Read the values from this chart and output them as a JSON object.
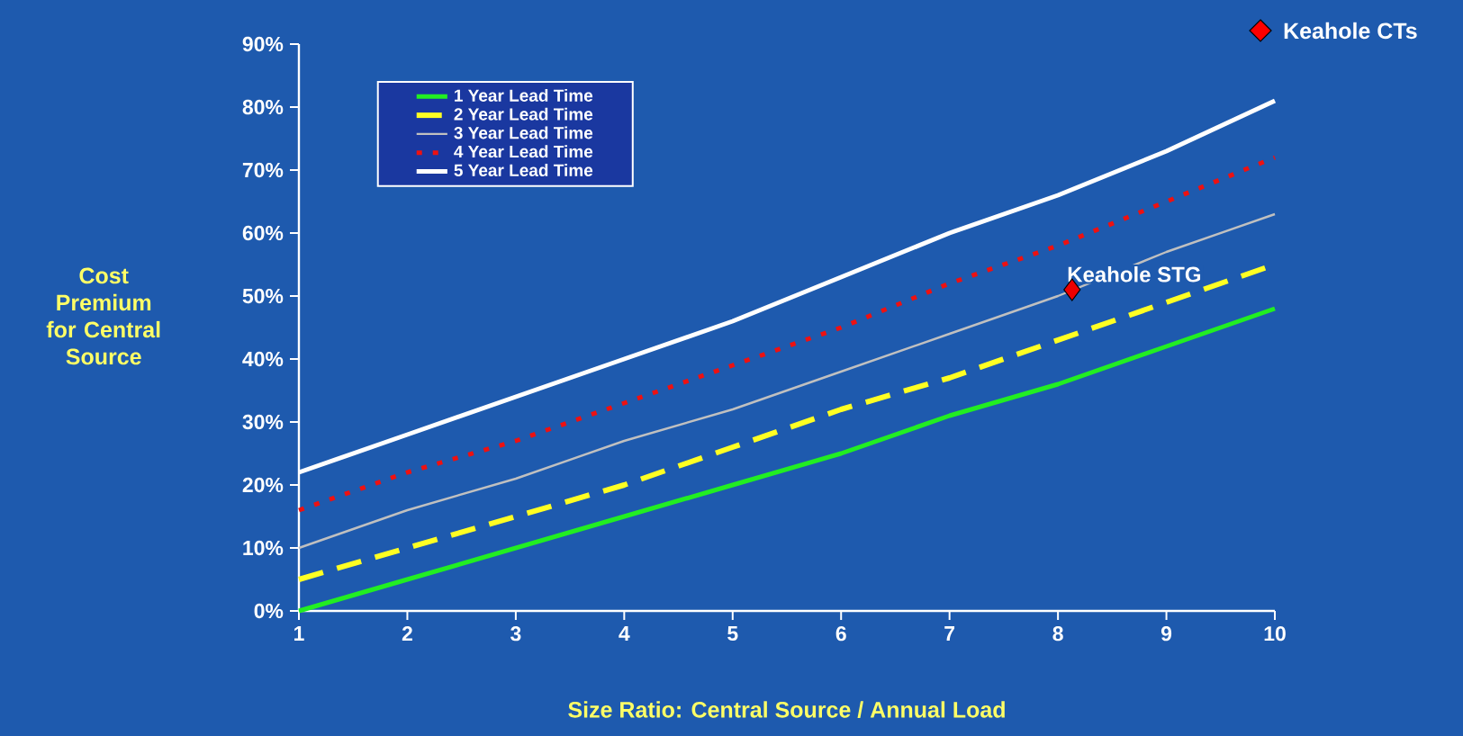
{
  "chart_data": {
    "type": "line",
    "xlabel": "Size Ratio: Central Source / Annual Load",
    "ylabel": "Cost Premium for Central Source",
    "x": [
      1,
      2,
      3,
      4,
      5,
      6,
      7,
      8,
      9,
      10
    ],
    "series": [
      {
        "name": "1 Year Lead Time",
        "color": "#22ee22",
        "line_style": "solid",
        "values": [
          0,
          5,
          10,
          15,
          20,
          25,
          31,
          36,
          42,
          48
        ]
      },
      {
        "name": "2 Year Lead Time",
        "color": "#ffff22",
        "line_style": "dashed",
        "values": [
          5,
          10,
          15,
          20,
          26,
          32,
          37,
          43,
          49,
          55
        ]
      },
      {
        "name": "3 Year Lead Time",
        "color": "#c0c0c0",
        "line_style": "solid",
        "values": [
          10,
          16,
          21,
          27,
          32,
          38,
          44,
          50,
          57,
          63
        ]
      },
      {
        "name": "4 Year Lead Time",
        "color": "#ee1111",
        "line_style": "dotted",
        "values": [
          16,
          22,
          27,
          33,
          39,
          45,
          52,
          58,
          65,
          72
        ]
      },
      {
        "name": "5 Year Lead Time",
        "color": "#ffffff",
        "line_style": "solid",
        "values": [
          22,
          28,
          34,
          40,
          46,
          53,
          60,
          66,
          73,
          81
        ]
      },
      {
        "name": "Keahole STG",
        "type": "scatter",
        "marker": "diamond",
        "color": "#ee0000",
        "x": [
          8.13
        ],
        "values": [
          51
        ]
      }
    ],
    "annotations": [
      "Keahole CTs"
    ],
    "xlim": [
      1,
      10
    ],
    "xticks": [
      1,
      2,
      3,
      4,
      5,
      6,
      7,
      8,
      9,
      10
    ],
    "ylim": [
      0,
      90
    ],
    "yticks": [
      {
        "value": 0,
        "label": "0%"
      },
      {
        "value": 10,
        "label": "10%"
      },
      {
        "value": 20,
        "label": "20%"
      },
      {
        "value": 30,
        "label": "30%"
      },
      {
        "value": 40,
        "label": "40%"
      },
      {
        "value": 50,
        "label": "50%"
      },
      {
        "value": 60,
        "label": "60%"
      },
      {
        "value": 70,
        "label": "70%"
      },
      {
        "value": 80,
        "label": "80%"
      },
      {
        "value": 90,
        "label": "90%"
      }
    ],
    "legend": "top left",
    "grid": false,
    "marker": "none"
  }
}
